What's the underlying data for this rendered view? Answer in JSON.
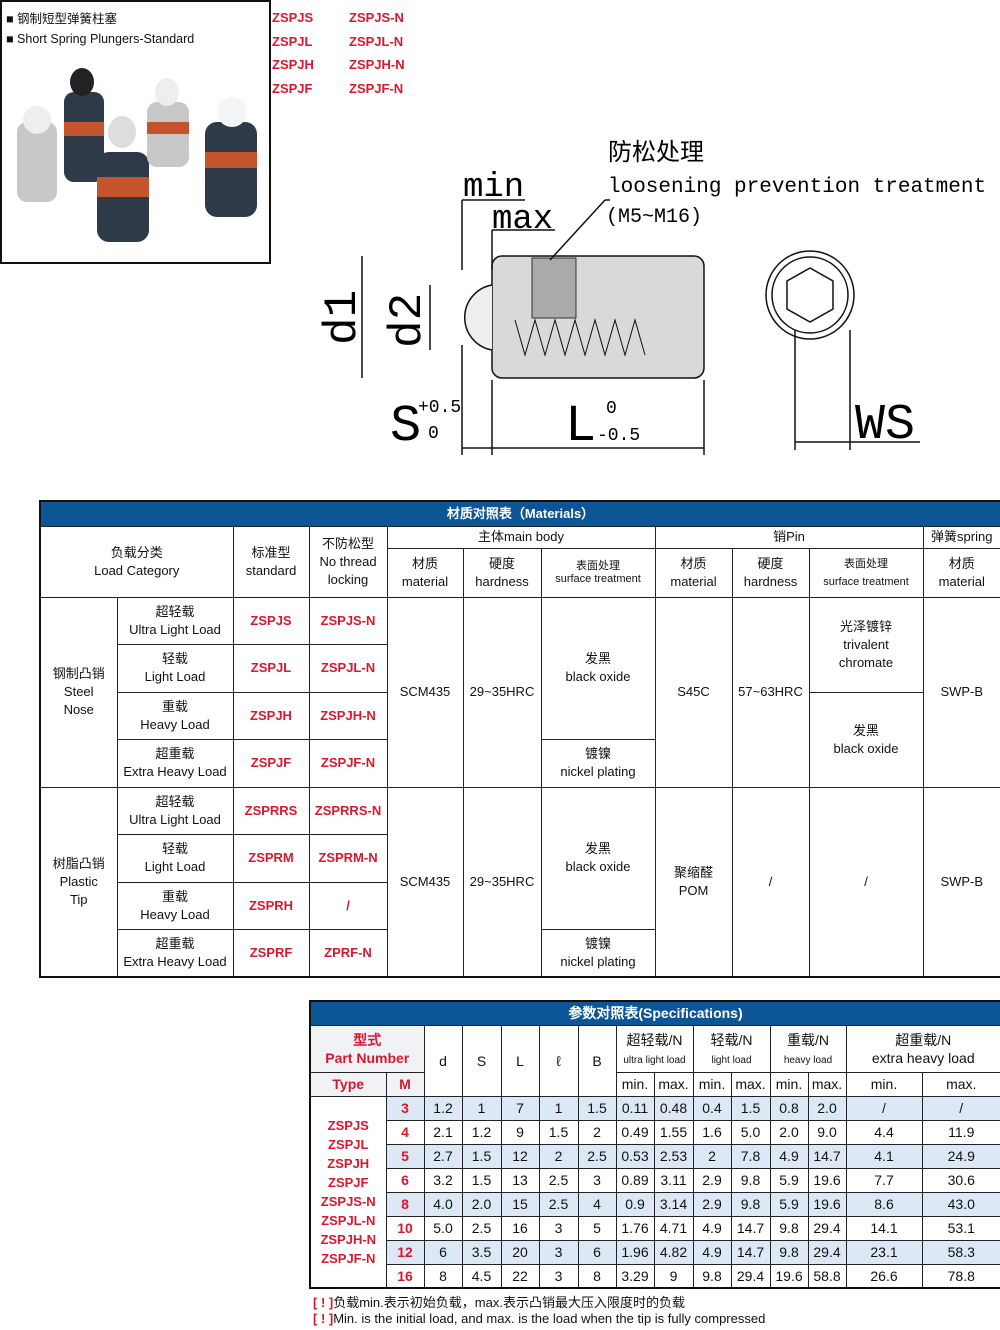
{
  "product": {
    "title_cn": "钢制短型弹簧柱塞",
    "title_en": "Short Spring Plungers-Standard"
  },
  "codes": [
    [
      "ZSPJS",
      "ZSPJS-N"
    ],
    [
      "ZSPJL",
      "ZSPJL-N"
    ],
    [
      "ZSPJH",
      "ZSPJH-N"
    ],
    [
      "ZSPJF",
      "ZSPJF-N"
    ]
  ],
  "drawing": {
    "min": "min",
    "max": "max",
    "anti_cn": "防松处理",
    "anti_en": "loosening prevention treatment",
    "anti_range": "(M5~M16)",
    "d1": "d1",
    "d2": "d2",
    "S": "S",
    "S_tol_up": "+0.5",
    "S_tol_low": "0",
    "L": "L",
    "L_tol_up": "0",
    "L_tol_low": "-0.5",
    "WS": "WS"
  },
  "materials": {
    "title": "材质对照表（Materials）",
    "h": {
      "load_cat": "负载分类\nLoad Category",
      "standard": "标准型\nstandard",
      "nolock": "不防松型\nNo thread\nlocking",
      "main": "主体main body",
      "pin": "销Pin",
      "spring": "弹簧spring",
      "material": "材质\nmaterial",
      "hardness": "硬度\nhardness",
      "surface": "表面处理\nsurface treatment"
    },
    "steel": "钢制凸销\nSteel\nNose",
    "plastic": "树脂凸销\nPlastic\nTip",
    "loads": [
      "超轻载\nUltra Light Load",
      "轻载\nLight Load",
      "重载\nHeavy Load",
      "超重载\nExtra Heavy Load"
    ],
    "steel_codes": [
      [
        "ZSPJS",
        "ZSPJS-N"
      ],
      [
        "ZSPJL",
        "ZSPJL-N"
      ],
      [
        "ZSPJH",
        "ZSPJH-N"
      ],
      [
        "ZSPJF",
        "ZSPJF-N"
      ]
    ],
    "plastic_codes": [
      [
        "ZSPRRS",
        "ZSPRRS-N"
      ],
      [
        "ZSPRM",
        "ZSPRM-N"
      ],
      [
        "ZSPRH",
        "/"
      ],
      [
        "ZSPRF",
        "ZPRF-N"
      ]
    ],
    "body_mat": "SCM435",
    "body_hard": "29~35HRC",
    "black": "发黑\nblack oxide",
    "nickel": "镀镍\nnickel plating",
    "pin_mat_steel": "S45C",
    "pin_hard_steel": "57~63HRC",
    "trivalent": "光泽镀锌\ntrivalent\nchromate",
    "pin_mat_plastic": "聚缩醛\nPOM",
    "slash": "/",
    "spring_mat": "SWP-B"
  },
  "specs": {
    "title": "参数对照表(Specifications)",
    "part_cn": "型式",
    "part_en": "Part Number",
    "type": "Type",
    "M": "M",
    "cols": [
      "d",
      "S",
      "L",
      "ℓ",
      "B"
    ],
    "loads": [
      [
        "超轻载/N",
        "ultra light load"
      ],
      [
        "轻载/N",
        "light load"
      ],
      [
        "重载/N",
        "heavy load"
      ],
      [
        "超重载/N",
        "extra heavy load"
      ]
    ],
    "min": "min.",
    "max": "max.",
    "types": "ZSPJS\nZSPJL\nZSPJH\nZSPJF\nZSPJS-N\nZSPJL-N\nZSPJH-N\nZSPJF-N",
    "rows": [
      [
        "3",
        "1.2",
        "1",
        "7",
        "1",
        "1.5",
        "0.11",
        "0.48",
        "0.4",
        "1.5",
        "0.8",
        "2.0",
        "/",
        "/"
      ],
      [
        "4",
        "2.1",
        "1.2",
        "9",
        "1.5",
        "2",
        "0.49",
        "1.55",
        "1.6",
        "5.0",
        "2.0",
        "9.0",
        "4.4",
        "11.9"
      ],
      [
        "5",
        "2.7",
        "1.5",
        "12",
        "2",
        "2.5",
        "0.53",
        "2.53",
        "2",
        "7.8",
        "4.9",
        "14.7",
        "4.1",
        "24.9"
      ],
      [
        "6",
        "3.2",
        "1.5",
        "13",
        "2.5",
        "3",
        "0.89",
        "3.11",
        "2.9",
        "9.8",
        "5.9",
        "19.6",
        "7.7",
        "30.6"
      ],
      [
        "8",
        "4.0",
        "2.0",
        "15",
        "2.5",
        "4",
        "0.9",
        "3.14",
        "2.9",
        "9.8",
        "5.9",
        "19.6",
        "8.6",
        "43.0"
      ],
      [
        "10",
        "5.0",
        "2.5",
        "16",
        "3",
        "5",
        "1.76",
        "4.71",
        "4.9",
        "14.7",
        "9.8",
        "29.4",
        "14.1",
        "53.1"
      ],
      [
        "12",
        "6",
        "3.5",
        "20",
        "3",
        "6",
        "1.96",
        "4.82",
        "4.9",
        "14.7",
        "9.8",
        "29.4",
        "23.1",
        "58.3"
      ],
      [
        "16",
        "8",
        "4.5",
        "22",
        "3",
        "8",
        "3.29",
        "9",
        "9.8",
        "29.4",
        "19.6",
        "58.8",
        "26.6",
        "78.8"
      ]
    ]
  },
  "notes": {
    "mark": "[ ! ]",
    "cn": "负载min.表示初始负载，max.表示凸销最大压入限度时的负载",
    "en": "Min. is the initial load, and max. is the load when the tip is fully compressed"
  },
  "colors": {
    "accent": "#0c5596",
    "red": "#d9182d",
    "row_alt": "#dce8f5"
  }
}
